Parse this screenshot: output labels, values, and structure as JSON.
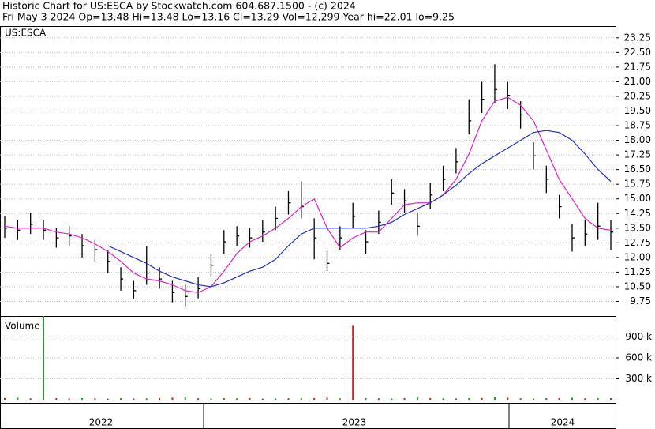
{
  "chart_data": {
    "type": "ohlc",
    "title": "Historic Chart for US:ESCA by Stockwatch.com 604.687.1500 - (c) 2024",
    "subtitle": "Fri May  3 2024  Op=13.48  Hi=13.48  Lo=13.16  Cl=13.29  Vol=12,299  Year hi=22.01  lo=9.25",
    "symbol": "US:ESCA",
    "volume_label": "Volume",
    "year_labels": [
      "2022",
      "2023",
      "2024"
    ],
    "ylim": [
      9,
      23.85
    ],
    "yticks": [
      9.75,
      {
        "value": 10.5,
        "label": "10.50"
      },
      11.25,
      {
        "value": 12,
        "label": "12.00"
      },
      12.75,
      {
        "value": 13.5,
        "label": "13.50"
      },
      14.25,
      {
        "value": 15,
        "label": "15.00"
      },
      15.75,
      {
        "value": 16.5,
        "label": "16.50"
      },
      17.25,
      {
        "value": 18,
        "label": "18.00"
      },
      18.75,
      {
        "value": 19.5,
        "label": "19.50"
      },
      20.25,
      {
        "value": 21,
        "label": "21.00"
      },
      21.75,
      {
        "value": 22.5,
        "label": "22.50"
      },
      23.25
    ],
    "grid": true,
    "color": "#000000",
    "high": [
      14.1,
      13.9,
      14.3,
      13.9,
      13.5,
      13.6,
      13.2,
      12.9,
      12.4,
      11.5,
      10.8,
      12.6,
      11.5,
      10.8,
      10.6,
      11.0,
      12.2,
      13.4,
      13.6,
      13.5,
      13.9,
      14.6,
      15.4,
      15.9,
      14.0,
      12.4,
      13.6,
      14.8,
      13.4,
      14.4,
      16.0,
      15.5,
      14.3,
      15.8,
      16.7,
      17.6,
      20.1,
      21.0,
      21.9,
      21.0,
      20.0,
      17.9,
      16.7,
      15.2,
      13.7,
      13.9,
      14.8,
      13.9
    ],
    "low": [
      13.0,
      12.9,
      13.2,
      12.9,
      12.5,
      12.6,
      12.0,
      11.8,
      11.2,
      10.3,
      9.9,
      10.6,
      10.4,
      9.7,
      9.5,
      9.9,
      11.0,
      12.2,
      12.6,
      12.5,
      12.8,
      13.4,
      14.2,
      14.0,
      11.9,
      11.3,
      12.4,
      13.5,
      12.2,
      13.2,
      14.7,
      14.3,
      13.1,
      14.5,
      15.4,
      16.3,
      18.3,
      19.4,
      19.9,
      19.6,
      18.6,
      16.5,
      15.3,
      14.0,
      12.3,
      12.6,
      12.9,
      12.4
    ],
    "close": [
      13.5,
      13.4,
      13.7,
      13.4,
      13.0,
      13.1,
      12.6,
      12.4,
      11.8,
      10.9,
      10.3,
      11.2,
      10.9,
      10.2,
      10.0,
      10.4,
      11.6,
      12.8,
      13.1,
      13.0,
      13.3,
      14.0,
      14.8,
      14.6,
      13.0,
      11.7,
      13.0,
      14.1,
      12.8,
      13.8,
      15.3,
      14.9,
      13.6,
      15.2,
      16.0,
      16.9,
      19.0,
      20.1,
      20.6,
      20.3,
      19.3,
      17.2,
      16.0,
      14.6,
      13.0,
      13.2,
      13.6,
      13.3
    ],
    "series": [
      {
        "color": "#e020c0",
        "values": [
          13.6,
          13.5,
          13.5,
          13.5,
          13.3,
          13.2,
          13.0,
          12.7,
          12.3,
          11.8,
          11.2,
          10.9,
          10.8,
          10.6,
          10.3,
          10.2,
          10.5,
          11.3,
          12.2,
          12.8,
          13.1,
          13.5,
          14.0,
          14.6,
          15.0,
          13.5,
          12.5,
          13.0,
          13.3,
          13.3,
          14.0,
          14.7,
          14.8,
          14.8,
          15.2,
          16.0,
          17.3,
          19.0,
          20.0,
          20.2,
          19.8,
          19.0,
          17.5,
          16.0,
          15.0,
          14.0,
          13.5,
          13.4
        ]
      },
      {
        "color": "#2030c0",
        "values": [
          null,
          null,
          null,
          null,
          null,
          null,
          null,
          null,
          12.6,
          12.3,
          12.0,
          11.7,
          11.3,
          11.0,
          10.8,
          10.6,
          10.5,
          10.7,
          11.0,
          11.3,
          11.5,
          11.9,
          12.6,
          13.2,
          13.5,
          13.5,
          13.5,
          13.5,
          13.5,
          13.6,
          13.8,
          14.2,
          14.5,
          14.8,
          15.2,
          15.7,
          16.3,
          16.8,
          17.2,
          17.6,
          18.0,
          18.4,
          18.5,
          18.4,
          18.0,
          17.3,
          16.5,
          15.9
        ]
      }
    ],
    "volume": {
      "ylim": [
        0,
        1200000
      ],
      "yticks": [
        {
          "value": 300000,
          "label": "300 k"
        },
        {
          "value": 600000,
          "label": "600 k"
        },
        {
          "value": 900000,
          "label": "900 k"
        }
      ],
      "values": [
        25000,
        30000,
        20000,
        1200000,
        22000,
        18000,
        25000,
        20000,
        15000,
        22000,
        18000,
        20000,
        25000,
        30000,
        40000,
        20000,
        18000,
        22000,
        20000,
        25000,
        15000,
        18000,
        20000,
        22000,
        25000,
        30000,
        20000,
        1070000,
        25000,
        20000,
        18000,
        22000,
        35000,
        25000,
        20000,
        18000,
        22000,
        25000,
        40000,
        30000,
        20000,
        18000,
        22000,
        25000,
        30000,
        20000,
        25000,
        22000
      ],
      "colors": [
        "#d02020",
        "#20a020",
        "#d02020",
        "#20a020",
        "#d02020",
        "#d02020",
        "#20a020",
        "#d02020",
        "#d02020",
        "#20a020",
        "#d02020",
        "#20a020",
        "#d02020",
        "#d02020",
        "#20a020",
        "#d02020",
        "#20a020",
        "#d02020",
        "#20a020",
        "#d02020",
        "#d02020",
        "#20a020",
        "#d02020",
        "#20a020",
        "#d02020",
        "#d02020",
        "#20a020",
        "#d02020",
        "#20a020",
        "#d02020",
        "#20a020",
        "#d02020",
        "#20a020",
        "#d02020",
        "#20a020",
        "#d02020",
        "#20a020",
        "#d02020",
        "#20a020",
        "#d02020",
        "#d02020",
        "#20a020",
        "#d02020",
        "#d02020",
        "#20a020",
        "#d02020",
        "#20a020",
        "#d02020"
      ]
    }
  }
}
